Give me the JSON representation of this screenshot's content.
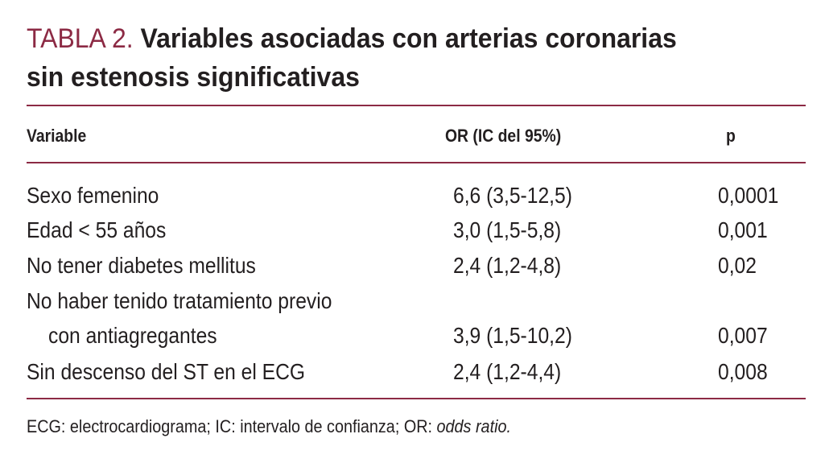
{
  "table": {
    "label": "TABLA 2.",
    "title_line1": "Variables asociadas con arterias coronarias",
    "title_line2": "sin estenosis significativas",
    "columns": [
      "Variable",
      "OR (IC del 95%)",
      "p"
    ],
    "rows": [
      {
        "variable": "Sexo femenino",
        "or": "6,6 (3,5-12,5)",
        "p": "0,0001"
      },
      {
        "variable": "Edad < 55 años",
        "or": "3,0 (1,5-5,8)",
        "p": "0,001"
      },
      {
        "variable": "No tener diabetes mellitus",
        "or": "2,4 (1,2-4,8)",
        "p": "0,02"
      },
      {
        "variable": "No haber tenido tratamiento previo",
        "variable_cont": "con antiagregantes",
        "or": "3,9 (1,5-10,2)",
        "p": "0,007"
      },
      {
        "variable": "Sin descenso del ST en el ECG",
        "or": "2,4 (1,2-4,4)",
        "p": "0,008"
      }
    ],
    "footnote_main": "ECG: electrocardiograma; IC: intervalo de confianza; OR: ",
    "footnote_italic": "odds ratio."
  },
  "colors": {
    "accent": "#8c2a44",
    "text": "#231f20"
  }
}
